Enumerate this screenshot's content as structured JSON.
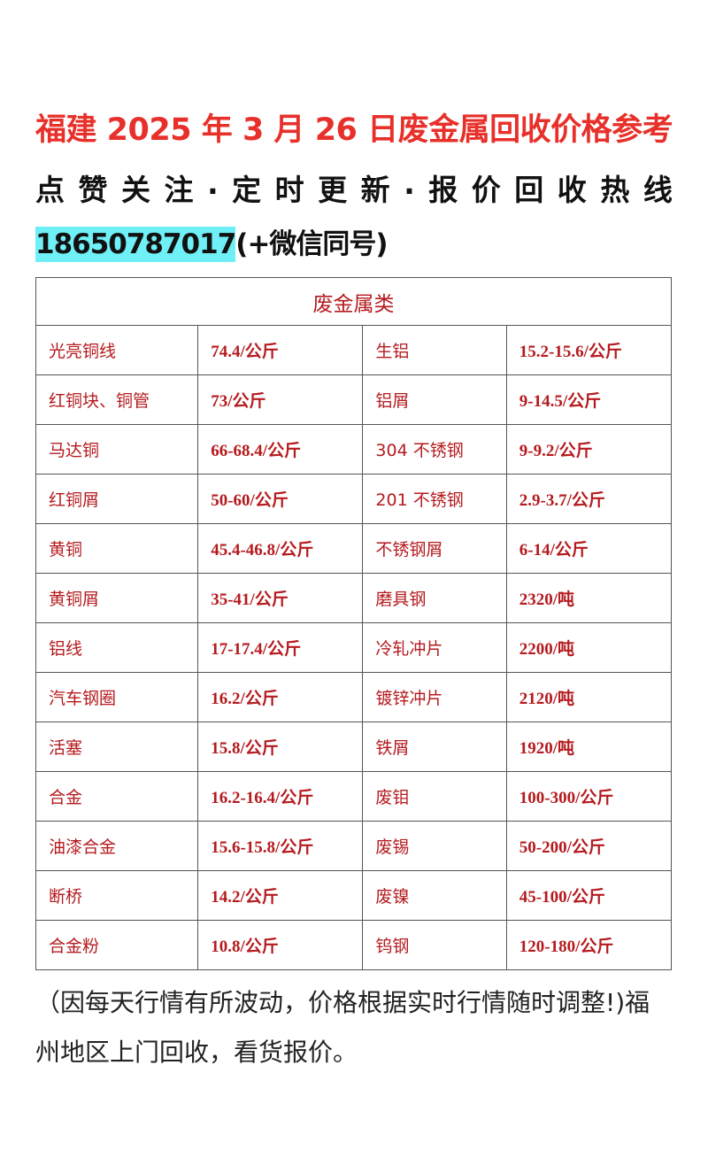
{
  "header": {
    "title": "福建 2025 年 3 月 26 日废金属回收价格参考",
    "subtitle_chars": [
      "点",
      "赞",
      "关",
      "注",
      ".",
      "定",
      "时",
      "更",
      "新",
      ".",
      "报",
      "价",
      "回",
      "收",
      "热",
      "线"
    ],
    "phone": "18650787017",
    "phone_suffix": "(+微信同号)"
  },
  "table": {
    "heading": "废金属类",
    "rows": [
      [
        "光亮铜线",
        "74.4/公斤",
        "生铝",
        "15.2-15.6/公斤"
      ],
      [
        "红铜块、铜管",
        "73/公斤",
        "铝屑",
        "9-14.5/公斤"
      ],
      [
        "马达铜",
        "66-68.4/公斤",
        "304 不锈钢",
        "9-9.2/公斤"
      ],
      [
        "红铜屑",
        "50-60/公斤",
        "201 不锈钢",
        "2.9-3.7/公斤"
      ],
      [
        "黄铜",
        "45.4-46.8/公斤",
        "不锈钢屑",
        "6-14/公斤"
      ],
      [
        "黄铜屑",
        "35-41/公斤",
        "磨具钢",
        "2320/吨"
      ],
      [
        "铝线",
        "17-17.4/公斤",
        "冷轧冲片",
        "2200/吨"
      ],
      [
        "汽车钢圈",
        "16.2/公斤",
        "镀锌冲片",
        "2120/吨"
      ],
      [
        "活塞",
        "15.8/公斤",
        "铁屑",
        "1920/吨"
      ],
      [
        "合金",
        "16.2-16.4/公斤",
        "废钼",
        "100-300/公斤"
      ],
      [
        "油漆合金",
        "15.6-15.8/公斤",
        "废锡",
        "50-200/公斤"
      ],
      [
        "断桥",
        "14.2/公斤",
        "废镍",
        "45-100/公斤"
      ],
      [
        "合金粉",
        "10.8/公斤",
        "钨钢",
        "120-180/公斤"
      ]
    ]
  },
  "note": "（因每天行情有所波动，价格根据实时行情随时调整!)福州地区上门回收，看货报价。",
  "colors": {
    "title": "#e8302a",
    "table_text": "#b51a1e",
    "phone_highlight": "#6ff0f6"
  }
}
